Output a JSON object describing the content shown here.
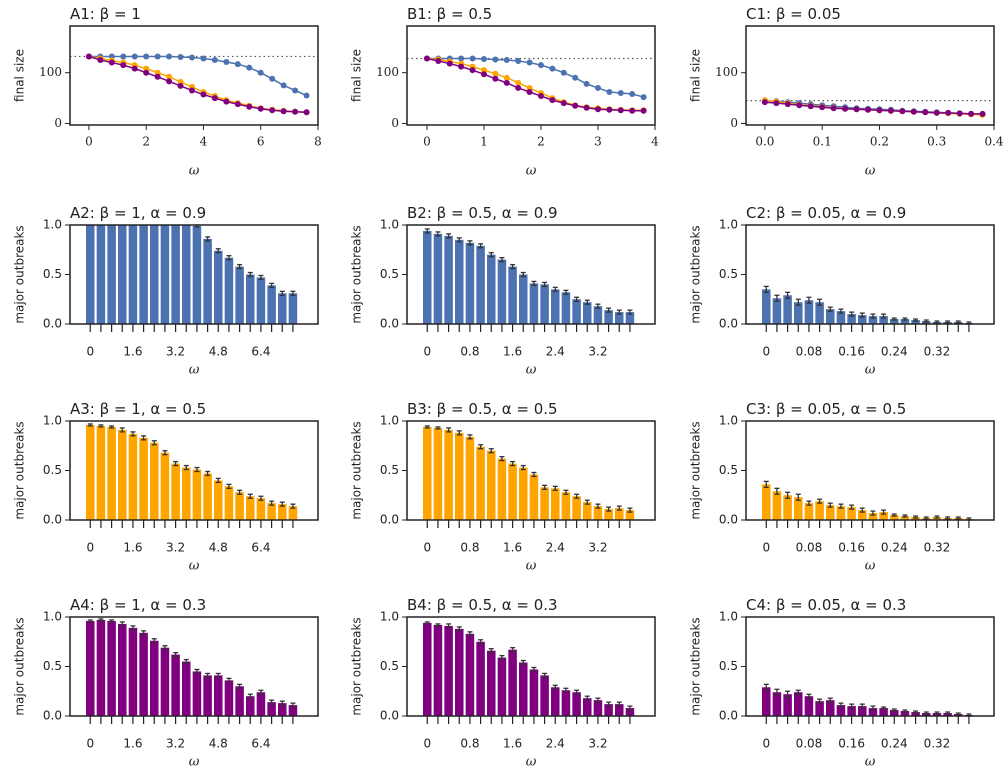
{
  "chart_data": [
    {
      "type": "line",
      "title": "A1: β = 1",
      "xlabel": "ω",
      "ylabel": "final size",
      "x": [
        0,
        0.4,
        0.8,
        1.2,
        1.6,
        2.0,
        2.4,
        2.8,
        3.2,
        3.6,
        4.0,
        4.4,
        4.8,
        5.2,
        5.6,
        6.0,
        6.4,
        6.8,
        7.2,
        7.6
      ],
      "xlim": [
        -0.66,
        8
      ],
      "xticks": [
        0,
        2,
        4,
        6,
        8
      ],
      "ylim": [
        -3,
        192
      ],
      "yticks": [
        0,
        100
      ],
      "reference_line": 132,
      "series": [
        {
          "color": "#4c72b0",
          "values": [
            132,
            132,
            132,
            132,
            132,
            132,
            132,
            132,
            131,
            130,
            128,
            125,
            121,
            117,
            110,
            100,
            88,
            75,
            65,
            55
          ]
        },
        {
          "color": "#ffa500",
          "values": [
            132,
            128,
            124,
            120,
            115,
            108,
            100,
            92,
            82,
            72,
            62,
            54,
            46,
            40,
            35,
            30,
            27,
            25,
            23,
            22
          ]
        },
        {
          "color": "#800080",
          "values": [
            132,
            125,
            120,
            115,
            108,
            100,
            92,
            83,
            74,
            65,
            57,
            50,
            43,
            38,
            33,
            29,
            26,
            24,
            23,
            22
          ]
        }
      ]
    },
    {
      "type": "line",
      "title": "B1: β = 0.5",
      "xlabel": "ω",
      "ylabel": "final size",
      "x": [
        0,
        0.2,
        0.4,
        0.6,
        0.8,
        1.0,
        1.2,
        1.4,
        1.6,
        1.8,
        2.0,
        2.2,
        2.4,
        2.6,
        2.8,
        3.0,
        3.2,
        3.4,
        3.6,
        3.8
      ],
      "xlim": [
        -0.35,
        4
      ],
      "xticks": [
        0,
        1,
        2,
        3,
        4
      ],
      "ylim": [
        -3,
        192
      ],
      "yticks": [
        0,
        100
      ],
      "reference_line": 128,
      "series": [
        {
          "color": "#4c72b0",
          "values": [
            128,
            128,
            128,
            128,
            128,
            127,
            126,
            125,
            123,
            120,
            115,
            108,
            100,
            90,
            78,
            70,
            62,
            60,
            58,
            52
          ]
        },
        {
          "color": "#ffa500",
          "values": [
            128,
            126,
            122,
            118,
            112,
            105,
            98,
            90,
            80,
            70,
            60,
            50,
            42,
            36,
            32,
            30,
            28,
            27,
            26,
            26
          ]
        },
        {
          "color": "#800080",
          "values": [
            128,
            123,
            118,
            112,
            105,
            97,
            88,
            80,
            70,
            62,
            54,
            46,
            40,
            35,
            31,
            28,
            27,
            26,
            25,
            25
          ]
        }
      ]
    },
    {
      "type": "line",
      "title": "C1: β = 0.05",
      "xlabel": "ω",
      "ylabel": "final size",
      "x": [
        0,
        0.02,
        0.04,
        0.06,
        0.08,
        0.1,
        0.12,
        0.14,
        0.16,
        0.18,
        0.2,
        0.22,
        0.24,
        0.26,
        0.28,
        0.3,
        0.32,
        0.34,
        0.36,
        0.38
      ],
      "xlim": [
        -0.033,
        0.4
      ],
      "xticks": [
        {
          "value": 0,
          "label": "0.0"
        },
        0.1,
        0.2,
        0.3,
        0.4
      ],
      "ylim": [
        -3,
        192
      ],
      "yticks": [
        0,
        100
      ],
      "reference_line": 45,
      "series": [
        {
          "color": "#4c72b0",
          "values": [
            45,
            44,
            42,
            40,
            38,
            36,
            34,
            32,
            30,
            29,
            28,
            27,
            25,
            24,
            23,
            22,
            21,
            20,
            19,
            18
          ]
        },
        {
          "color": "#ffa500",
          "values": [
            46,
            43,
            40,
            37,
            35,
            33,
            31,
            29,
            28,
            27,
            26,
            25,
            24,
            23,
            22,
            21,
            20,
            19,
            18,
            17
          ]
        },
        {
          "color": "#800080",
          "values": [
            42,
            40,
            38,
            36,
            34,
            32,
            30,
            29,
            28,
            27,
            26,
            25,
            24,
            23,
            22,
            21,
            21,
            20,
            19,
            19
          ]
        }
      ]
    },
    {
      "type": "bar",
      "title": "A2: β = 1, α = 0.9",
      "xlabel": "ω",
      "ylabel": "major outbreaks",
      "color": "#4c72b0",
      "categories": [
        "0",
        null,
        null,
        null,
        "1.6",
        null,
        null,
        null,
        "3.2",
        null,
        null,
        null,
        "4.8",
        null,
        null,
        null,
        "6.4",
        null,
        null,
        null
      ],
      "values": [
        1,
        1,
        1,
        1,
        1,
        1,
        1,
        1,
        1,
        1,
        0.99,
        0.86,
        0.74,
        0.67,
        0.58,
        0.5,
        0.47,
        0.39,
        0.31,
        0.31
      ],
      "errors": [
        0,
        0,
        0,
        0,
        0,
        0,
        0,
        0,
        0,
        0,
        0.01,
        0.02,
        0.02,
        0.02,
        0.02,
        0.02,
        0.02,
        0.02,
        0.02,
        0.02
      ],
      "ylim": [
        0,
        1
      ],
      "yticks": [
        {
          "value": 0,
          "label": "0.0"
        },
        {
          "value": 0.5,
          "label": "0.5"
        },
        {
          "value": 1,
          "label": "1.0"
        }
      ]
    },
    {
      "type": "bar",
      "title": "B2: β = 0.5, α = 0.9",
      "xlabel": "ω",
      "ylabel": "major outbreaks",
      "color": "#4c72b0",
      "categories": [
        "0",
        null,
        null,
        null,
        "0.8",
        null,
        null,
        null,
        "1.6",
        null,
        null,
        null,
        "2.4",
        null,
        null,
        null,
        "3.2",
        null,
        null,
        null
      ],
      "values": [
        0.94,
        0.91,
        0.89,
        0.85,
        0.82,
        0.79,
        0.7,
        0.65,
        0.58,
        0.5,
        0.41,
        0.4,
        0.35,
        0.32,
        0.25,
        0.22,
        0.18,
        0.14,
        0.12,
        0.12
      ],
      "errors": [
        0.02,
        0.02,
        0.02,
        0.02,
        0.02,
        0.02,
        0.02,
        0.02,
        0.02,
        0.02,
        0.02,
        0.02,
        0.02,
        0.02,
        0.02,
        0.02,
        0.02,
        0.02,
        0.02,
        0.02
      ],
      "ylim": [
        0,
        1
      ],
      "yticks": [
        {
          "value": 0,
          "label": "0.0"
        },
        {
          "value": 0.5,
          "label": "0.5"
        },
        {
          "value": 1,
          "label": "1.0"
        }
      ]
    },
    {
      "type": "bar",
      "title": "C2: β = 0.05, α = 0.9",
      "xlabel": "ω",
      "ylabel": "major outbreaks",
      "color": "#4c72b0",
      "categories": [
        "0",
        null,
        null,
        null,
        "0.08",
        null,
        null,
        null,
        "0.16",
        null,
        null,
        null,
        "0.24",
        null,
        null,
        null,
        "0.32",
        null,
        null,
        null
      ],
      "values": [
        0.35,
        0.26,
        0.29,
        0.22,
        0.24,
        0.22,
        0.15,
        0.13,
        0.1,
        0.09,
        0.08,
        0.08,
        0.05,
        0.05,
        0.04,
        0.03,
        0.02,
        0.02,
        0.02,
        0.01
      ],
      "errors": [
        0.03,
        0.03,
        0.03,
        0.03,
        0.03,
        0.03,
        0.02,
        0.02,
        0.02,
        0.02,
        0.02,
        0.02,
        0.01,
        0.01,
        0.01,
        0.01,
        0.01,
        0.01,
        0.01,
        0.01
      ],
      "ylim": [
        0,
        1
      ],
      "yticks": [
        {
          "value": 0,
          "label": "0.0"
        },
        {
          "value": 0.5,
          "label": "0.5"
        },
        {
          "value": 1,
          "label": "1.0"
        }
      ]
    },
    {
      "type": "bar",
      "title": "A3: β = 1, α = 0.5",
      "xlabel": "ω",
      "ylabel": "major outbreaks",
      "color": "#ffa500",
      "categories": [
        "0",
        null,
        null,
        null,
        "1.6",
        null,
        null,
        null,
        "3.2",
        null,
        null,
        null,
        "4.8",
        null,
        null,
        null,
        "6.4",
        null,
        null,
        null
      ],
      "values": [
        0.96,
        0.95,
        0.94,
        0.91,
        0.87,
        0.83,
        0.78,
        0.68,
        0.57,
        0.53,
        0.51,
        0.47,
        0.4,
        0.34,
        0.28,
        0.24,
        0.22,
        0.17,
        0.16,
        0.14
      ],
      "errors": [
        0.01,
        0.01,
        0.01,
        0.02,
        0.02,
        0.02,
        0.02,
        0.02,
        0.02,
        0.02,
        0.02,
        0.02,
        0.02,
        0.02,
        0.02,
        0.02,
        0.02,
        0.02,
        0.02,
        0.02
      ],
      "ylim": [
        0,
        1
      ],
      "yticks": [
        {
          "value": 0,
          "label": "0.0"
        },
        {
          "value": 0.5,
          "label": "0.5"
        },
        {
          "value": 1,
          "label": "1.0"
        }
      ]
    },
    {
      "type": "bar",
      "title": "B3: β = 0.5, α = 0.5",
      "xlabel": "ω",
      "ylabel": "major outbreaks",
      "color": "#ffa500",
      "categories": [
        "0",
        null,
        null,
        null,
        "0.8",
        null,
        null,
        null,
        "1.6",
        null,
        null,
        null,
        "2.4",
        null,
        null,
        null,
        "3.2",
        null,
        null,
        null
      ],
      "values": [
        0.94,
        0.93,
        0.91,
        0.88,
        0.84,
        0.74,
        0.7,
        0.62,
        0.57,
        0.53,
        0.46,
        0.33,
        0.32,
        0.28,
        0.24,
        0.18,
        0.14,
        0.11,
        0.12,
        0.1
      ],
      "errors": [
        0.01,
        0.01,
        0.02,
        0.02,
        0.02,
        0.02,
        0.02,
        0.02,
        0.02,
        0.02,
        0.02,
        0.02,
        0.02,
        0.02,
        0.02,
        0.02,
        0.02,
        0.02,
        0.02,
        0.02
      ],
      "ylim": [
        0,
        1
      ],
      "yticks": [
        {
          "value": 0,
          "label": "0.0"
        },
        {
          "value": 0.5,
          "label": "0.5"
        },
        {
          "value": 1,
          "label": "1.0"
        }
      ]
    },
    {
      "type": "bar",
      "title": "C3: β = 0.05, α = 0.5",
      "xlabel": "ω",
      "ylabel": "major outbreaks",
      "color": "#ffa500",
      "categories": [
        "0",
        null,
        null,
        null,
        "0.08",
        null,
        null,
        null,
        "0.16",
        null,
        null,
        null,
        "0.24",
        null,
        null,
        null,
        "0.32",
        null,
        null,
        null
      ],
      "values": [
        0.36,
        0.29,
        0.25,
        0.23,
        0.17,
        0.19,
        0.15,
        0.14,
        0.13,
        0.1,
        0.07,
        0.08,
        0.05,
        0.04,
        0.03,
        0.02,
        0.03,
        0.02,
        0.02,
        0.01
      ],
      "errors": [
        0.03,
        0.03,
        0.03,
        0.03,
        0.02,
        0.02,
        0.02,
        0.02,
        0.02,
        0.02,
        0.02,
        0.02,
        0.01,
        0.01,
        0.01,
        0.01,
        0.01,
        0.01,
        0.01,
        0.01
      ],
      "ylim": [
        0,
        1
      ],
      "yticks": [
        {
          "value": 0,
          "label": "0.0"
        },
        {
          "value": 0.5,
          "label": "0.5"
        },
        {
          "value": 1,
          "label": "1.0"
        }
      ]
    },
    {
      "type": "bar",
      "title": "A4: β = 1, α = 0.3",
      "xlabel": "ω",
      "ylabel": "major outbreaks",
      "color": "#800080",
      "categories": [
        "0",
        null,
        null,
        null,
        "1.6",
        null,
        null,
        null,
        "3.2",
        null,
        null,
        null,
        "4.8",
        null,
        null,
        null,
        "6.4",
        null,
        null,
        null
      ],
      "values": [
        0.96,
        0.97,
        0.96,
        0.93,
        0.89,
        0.84,
        0.76,
        0.69,
        0.62,
        0.55,
        0.45,
        0.41,
        0.41,
        0.36,
        0.3,
        0.2,
        0.24,
        0.14,
        0.13,
        0.11
      ],
      "errors": [
        0.01,
        0.01,
        0.01,
        0.02,
        0.02,
        0.02,
        0.02,
        0.02,
        0.02,
        0.02,
        0.02,
        0.02,
        0.02,
        0.02,
        0.02,
        0.02,
        0.02,
        0.02,
        0.02,
        0.02
      ],
      "ylim": [
        0,
        1
      ],
      "yticks": [
        {
          "value": 0,
          "label": "0.0"
        },
        {
          "value": 0.5,
          "label": "0.5"
        },
        {
          "value": 1,
          "label": "1.0"
        }
      ]
    },
    {
      "type": "bar",
      "title": "B4: β = 0.5, α = 0.3",
      "xlabel": "ω",
      "ylabel": "major outbreaks",
      "color": "#800080",
      "categories": [
        "0",
        null,
        null,
        null,
        "0.8",
        null,
        null,
        null,
        "1.6",
        null,
        null,
        null,
        "2.4",
        null,
        null,
        null,
        "3.2",
        null,
        null,
        null
      ],
      "values": [
        0.94,
        0.92,
        0.91,
        0.88,
        0.83,
        0.75,
        0.66,
        0.59,
        0.67,
        0.54,
        0.47,
        0.41,
        0.29,
        0.26,
        0.24,
        0.18,
        0.16,
        0.12,
        0.12,
        0.08
      ],
      "errors": [
        0.01,
        0.01,
        0.02,
        0.02,
        0.02,
        0.02,
        0.02,
        0.02,
        0.02,
        0.02,
        0.02,
        0.02,
        0.02,
        0.02,
        0.02,
        0.02,
        0.02,
        0.02,
        0.02,
        0.02
      ],
      "ylim": [
        0,
        1
      ],
      "yticks": [
        {
          "value": 0,
          "label": "0.0"
        },
        {
          "value": 0.5,
          "label": "0.5"
        },
        {
          "value": 1,
          "label": "1.0"
        }
      ]
    },
    {
      "type": "bar",
      "title": "C4: β = 0.05, α = 0.3",
      "xlabel": "ω",
      "ylabel": "major outbreaks",
      "color": "#800080",
      "categories": [
        "0",
        null,
        null,
        null,
        "0.08",
        null,
        null,
        null,
        "0.16",
        null,
        null,
        null,
        "0.24",
        null,
        null,
        null,
        "0.32",
        null,
        null,
        null
      ],
      "values": [
        0.29,
        0.24,
        0.22,
        0.24,
        0.2,
        0.15,
        0.16,
        0.11,
        0.1,
        0.1,
        0.08,
        0.08,
        0.06,
        0.05,
        0.04,
        0.03,
        0.03,
        0.03,
        0.02,
        0.01
      ],
      "errors": [
        0.03,
        0.03,
        0.03,
        0.02,
        0.02,
        0.02,
        0.02,
        0.02,
        0.02,
        0.02,
        0.02,
        0.01,
        0.01,
        0.01,
        0.01,
        0.01,
        0.01,
        0.01,
        0.01,
        0.01
      ],
      "ylim": [
        0,
        1
      ],
      "yticks": [
        {
          "value": 0,
          "label": "0.0"
        },
        {
          "value": 0.5,
          "label": "0.5"
        },
        {
          "value": 1,
          "label": "1.0"
        }
      ]
    }
  ]
}
